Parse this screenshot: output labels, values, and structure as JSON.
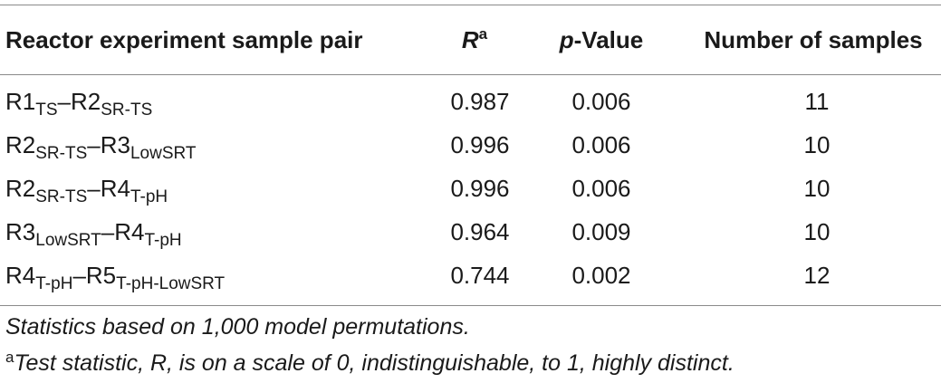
{
  "table": {
    "header": {
      "pair": "Reactor experiment sample pair",
      "r_letter": "R",
      "r_sup": "a",
      "p_italic": "p",
      "p_rest": "-Value",
      "n": "Number of samples"
    },
    "rows": [
      {
        "a": "R1",
        "a_sub": "TS",
        "dash": "–",
        "b": "R2",
        "b_sub": "SR-TS",
        "r": "0.987",
        "p": "0.006",
        "n": "11"
      },
      {
        "a": "R2",
        "a_sub": "SR-TS",
        "dash": "–",
        "b": "R3",
        "b_sub": "LowSRT",
        "r": "0.996",
        "p": "0.006",
        "n": "10"
      },
      {
        "a": "R2",
        "a_sub": "SR-TS",
        "dash": "–",
        "b": "R4",
        "b_sub": "T-pH",
        "r": "0.996",
        "p": "0.006",
        "n": "10"
      },
      {
        "a": "R3",
        "a_sub": "LowSRT",
        "dash": "–",
        "b": "R4",
        "b_sub": "T-pH",
        "r": "0.964",
        "p": "0.009",
        "n": "10"
      },
      {
        "a": "R4",
        "a_sub": "T-pH",
        "dash": "–",
        "b": "R5",
        "b_sub": "T-pH-LowSRT",
        "r": "0.744",
        "p": "0.002",
        "n": "12"
      }
    ]
  },
  "notes": {
    "note1": "Statistics based on 1,000 model permutations.",
    "note2_sup": "a",
    "note2_text": "Test statistic, R, is on a scale of 0, indistinguishable, to 1, highly distinct."
  }
}
